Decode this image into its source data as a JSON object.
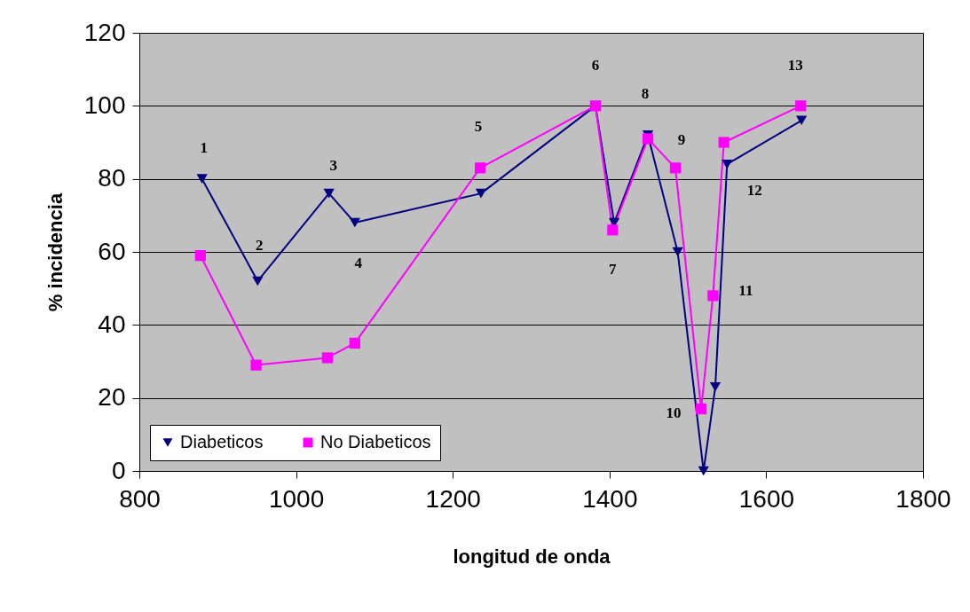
{
  "chart_data": {
    "type": "line",
    "xlabel": "longitud de onda",
    "ylabel": "% incidencia",
    "series": [
      {
        "name": "Diabeticos",
        "color": "#000080",
        "marker": "triangle",
        "x": [
          880,
          951,
          1042,
          1075,
          1236,
          1382,
          1406,
          1449,
          1487,
          1520,
          1535,
          1550,
          1645
        ],
        "values": [
          80,
          52,
          76,
          68,
          76,
          100,
          68,
          92,
          60,
          0,
          23,
          84,
          96
        ]
      },
      {
        "name": "No Diabeticos",
        "color": "#ff00ff",
        "marker": "square",
        "x": [
          878,
          949,
          1040,
          1075,
          1235,
          1382,
          1404,
          1449,
          1484,
          1517,
          1532,
          1546,
          1644
        ],
        "values": [
          59,
          29,
          31,
          35,
          83,
          100,
          66,
          91,
          83,
          17,
          48,
          90,
          100
        ]
      }
    ],
    "annotations": [
      {
        "text": "1",
        "x": 880,
        "y": 80
      },
      {
        "text": "2",
        "x": 951,
        "y": 52
      },
      {
        "text": "3",
        "x": 1042,
        "y": 76
      },
      {
        "text": "4",
        "x": 1075,
        "y": 68
      },
      {
        "text": "5",
        "x": 1235,
        "y": 83
      },
      {
        "text": "6",
        "x": 1382,
        "y": 100
      },
      {
        "text": "7",
        "x": 1404,
        "y": 66
      },
      {
        "text": "8",
        "x": 1449,
        "y": 92
      },
      {
        "text": "9",
        "x": 1484,
        "y": 83
      },
      {
        "text": "10",
        "x": 1517,
        "y": 17
      },
      {
        "text": "11",
        "x": 1532,
        "y": 48
      },
      {
        "text": "12",
        "x": 1550,
        "y": 84
      },
      {
        "text": "13",
        "x": 1644,
        "y": 100
      }
    ],
    "xlim": [
      800,
      1800
    ],
    "xticks": [
      800,
      1000,
      1200,
      1400,
      1600,
      1800
    ],
    "ylim": [
      0,
      120
    ],
    "yticks": [
      0,
      20,
      40,
      60,
      80,
      100,
      120
    ],
    "grid": "y",
    "legend": "bottom left"
  }
}
